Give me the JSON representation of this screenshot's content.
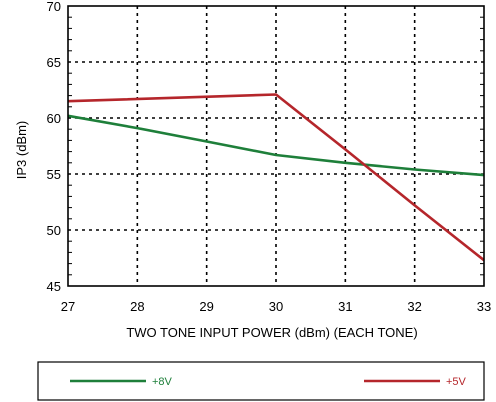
{
  "chart_data": {
    "type": "line",
    "xlabel": "TWO TONE INPUT POWER (dBm) (EACH TONE)",
    "ylabel": "IP3  (dBm)",
    "xlim": [
      27,
      33
    ],
    "ylim": [
      45,
      70
    ],
    "x_ticks": [
      "27",
      "28",
      "29",
      "30",
      "31",
      "32",
      "33"
    ],
    "y_ticks": [
      "45",
      "50",
      "55",
      "60",
      "65",
      "70"
    ],
    "grid": true,
    "legend_position": "bottom",
    "series": [
      {
        "name": "+8V",
        "color": "#1e7f3a",
        "x": [
          27,
          28,
          29,
          30,
          31,
          32,
          33
        ],
        "y": [
          60.2,
          59.1,
          57.9,
          56.7,
          56.0,
          55.4,
          54.9
        ]
      },
      {
        "name": "+5V",
        "color": "#b5262b",
        "x": [
          27,
          30,
          31,
          32,
          33
        ],
        "y": [
          61.5,
          62.1,
          57.2,
          52.2,
          47.3
        ]
      }
    ]
  }
}
